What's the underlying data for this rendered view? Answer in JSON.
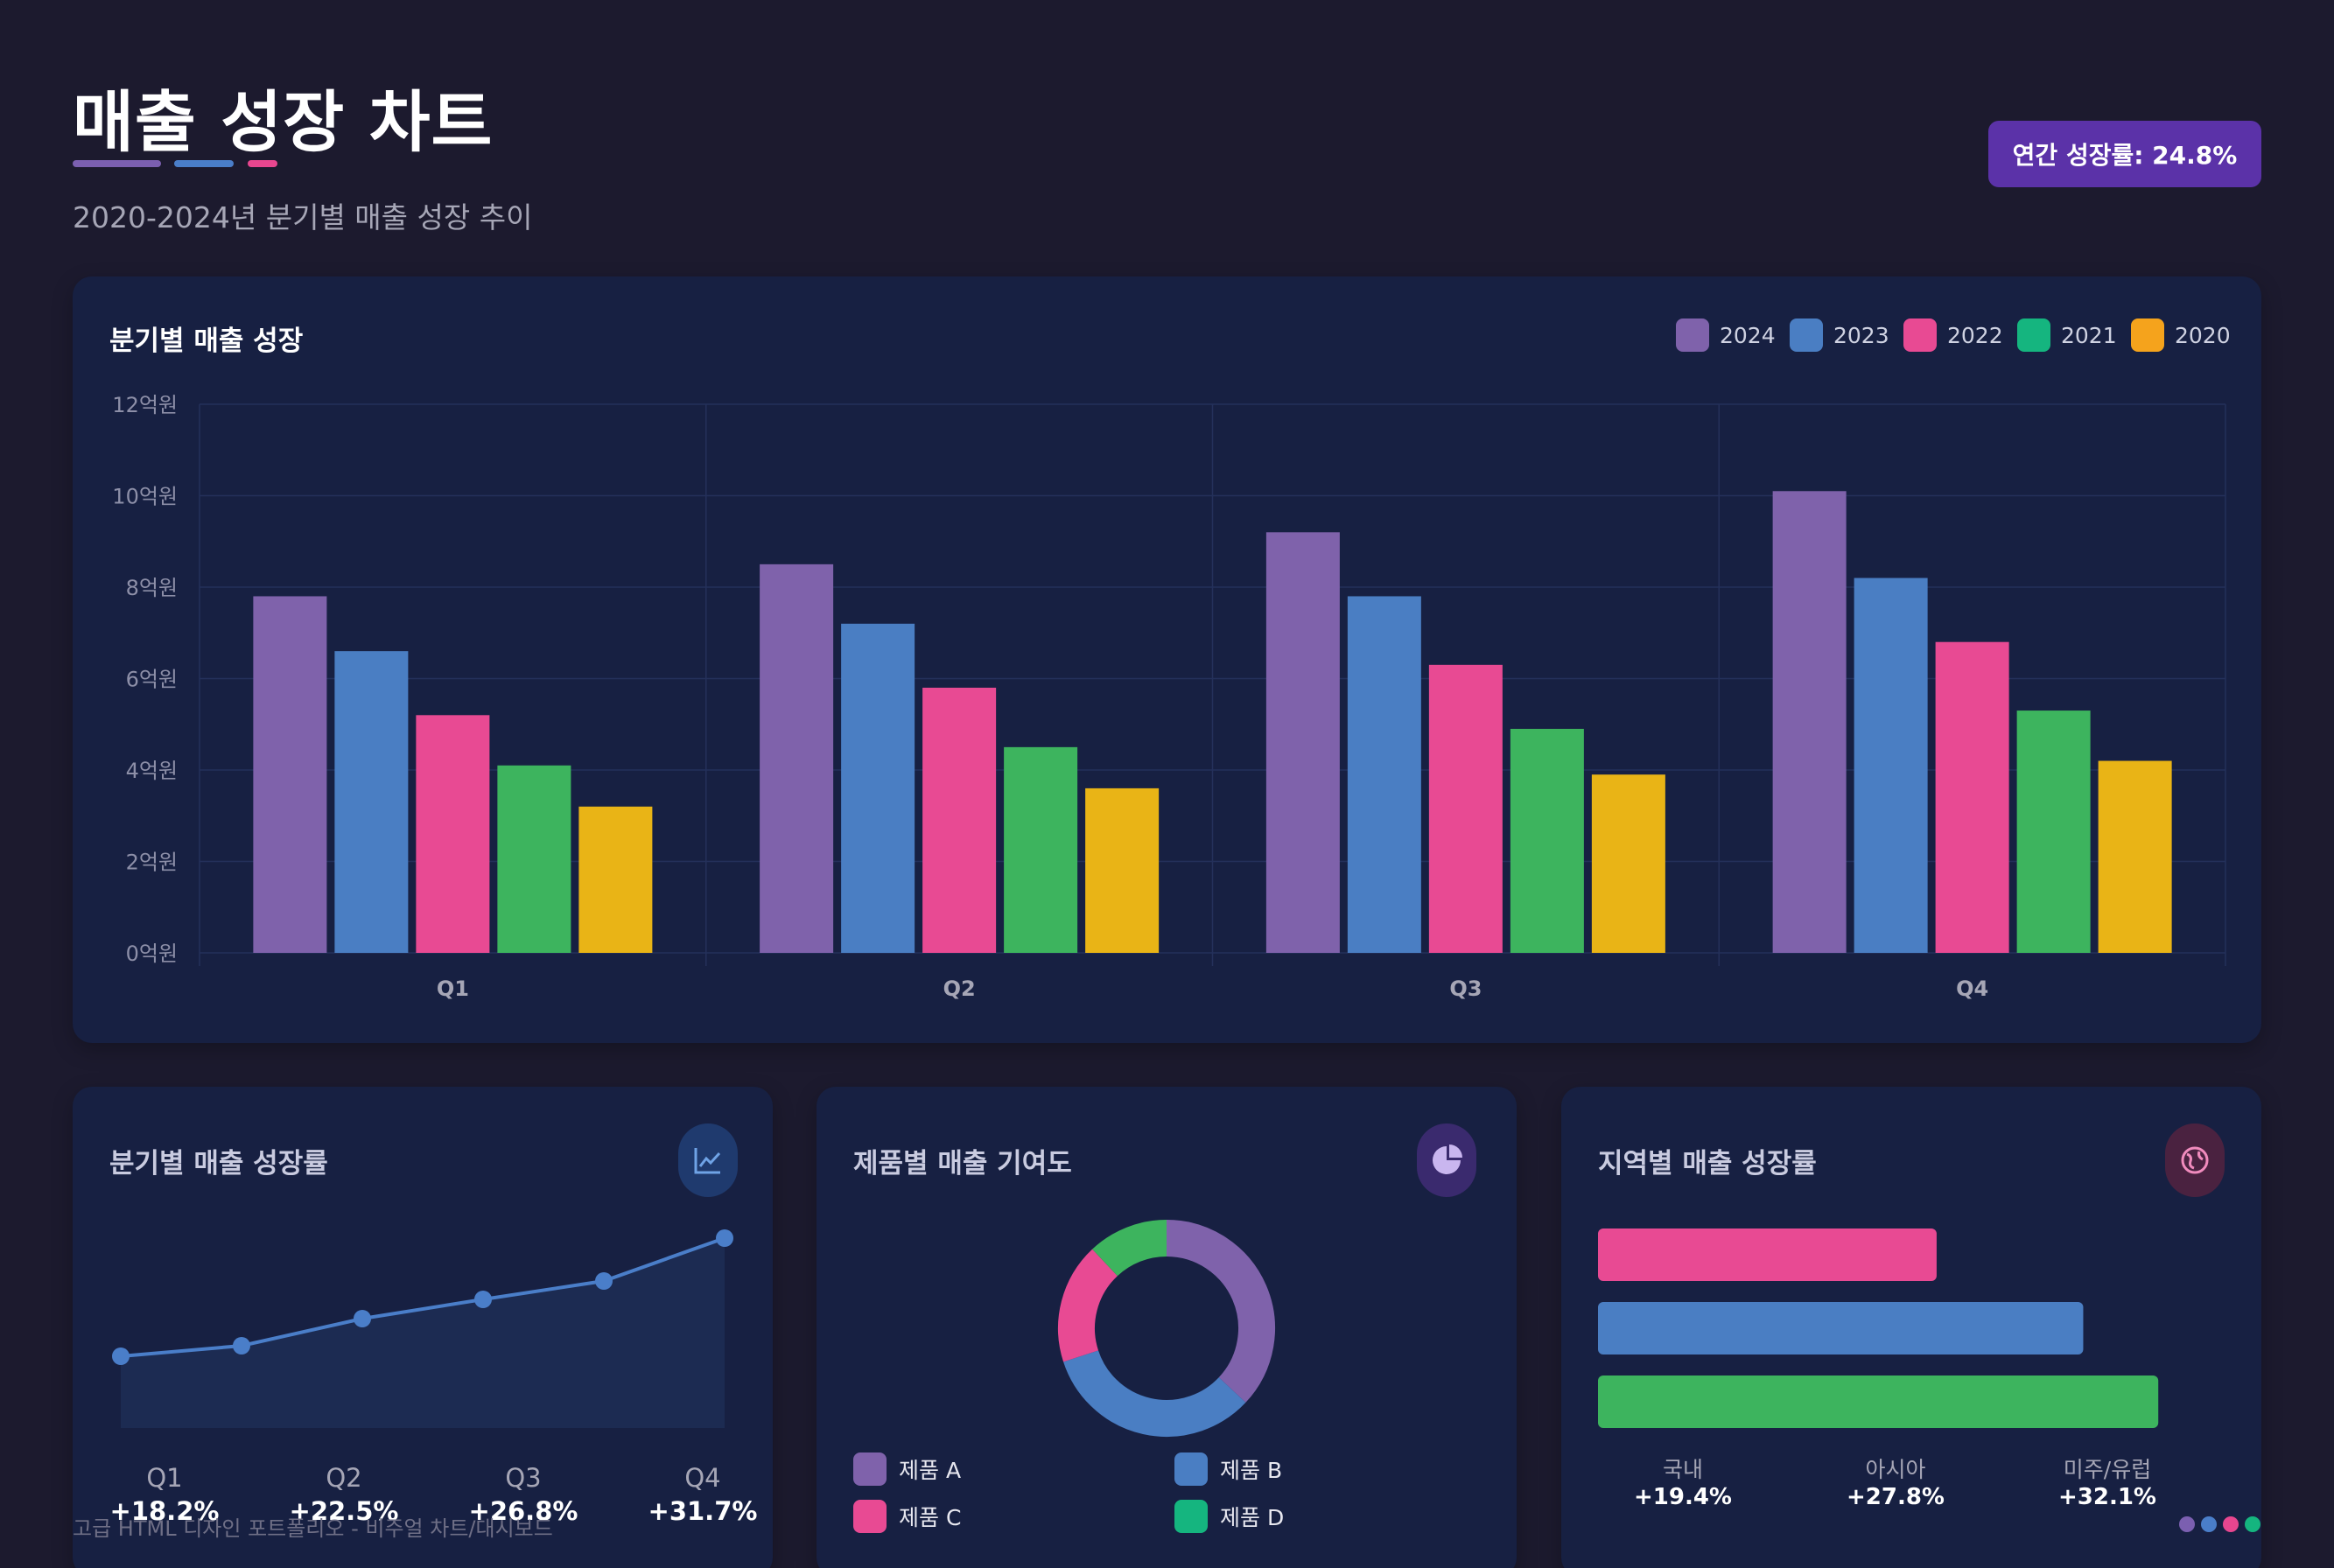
{
  "header": {
    "title": "매출 성장 차트",
    "subtitle": "2020-2024년 분기별 매출 성장 추이",
    "badge": "연간 성장률: 24.8%",
    "underline_colors": [
      "#7b5fb0",
      "#4a7ec9",
      "#e8468f"
    ]
  },
  "colors": {
    "2024": "#7f62ab",
    "2023": "#4a7ec3",
    "2022": "#e84a93",
    "2021": "#3db45e",
    "2020": "#e9b416",
    "legend_2021": "#15b57f",
    "legend_2020": "#f5a31c"
  },
  "chart_data": [
    {
      "type": "bar",
      "title": "분기별 매출 성장",
      "categories": [
        "Q1",
        "Q2",
        "Q3",
        "Q4"
      ],
      "series": [
        {
          "name": "2024",
          "values": [
            7.8,
            8.5,
            9.2,
            10.1
          ]
        },
        {
          "name": "2023",
          "values": [
            6.6,
            7.2,
            7.8,
            8.2
          ]
        },
        {
          "name": "2022",
          "values": [
            5.2,
            5.8,
            6.3,
            6.8
          ]
        },
        {
          "name": "2021",
          "values": [
            4.1,
            4.5,
            4.9,
            5.3
          ]
        },
        {
          "name": "2020",
          "values": [
            3.2,
            3.6,
            3.9,
            4.2
          ]
        }
      ],
      "ylim": [
        0,
        12
      ],
      "yticks": [
        "0억원",
        "2억원",
        "4억원",
        "6억원",
        "8억원",
        "10억원",
        "12억원"
      ],
      "legend_position": "top-right",
      "grid": true
    },
    {
      "type": "area",
      "title": "분기별 매출 성장률",
      "x": [
        "Q1",
        "",
        "Q2",
        "",
        "Q3",
        "Q4"
      ],
      "values": [
        18.2,
        19.4,
        22.5,
        24.7,
        26.8,
        31.7
      ],
      "labels": [
        "Q1",
        "Q2",
        "Q3",
        "Q4"
      ],
      "value_labels": [
        "+18.2%",
        "+22.5%",
        "+26.8%",
        "+31.7%"
      ],
      "ylim": [
        10,
        34
      ],
      "color": "#4a7ec9"
    },
    {
      "type": "pie",
      "title": "제품별 매출 기여도",
      "categories": [
        "제품 A",
        "제품 B",
        "제품 C",
        "제품 D"
      ],
      "values": [
        37,
        33,
        18,
        12
      ],
      "colors": [
        "#7f62ab",
        "#4a7ec3",
        "#e84a93",
        "#3db45e"
      ]
    },
    {
      "type": "bar",
      "orientation": "horizontal",
      "title": "지역별 매출 성장률",
      "categories": [
        "국내",
        "아시아",
        "미주/유럽"
      ],
      "values": [
        19.4,
        27.8,
        32.1
      ],
      "value_labels": [
        "+19.4%",
        "+27.8%",
        "+32.1%"
      ],
      "colors": [
        "#e84a93",
        "#4a7ec3",
        "#3db45e"
      ],
      "xlim": [
        0,
        36
      ]
    }
  ],
  "footer": {
    "text": "고급 HTML 디자인 포트폴리오 - 비주얼 차트/대시보드",
    "dot_colors": [
      "#7b5fb0",
      "#4a7ec9",
      "#e8468f",
      "#15b57f"
    ]
  },
  "icons": {
    "line_card": "line-chart-icon",
    "donut_card": "pie-chart-icon",
    "region_card": "globe-icon"
  }
}
